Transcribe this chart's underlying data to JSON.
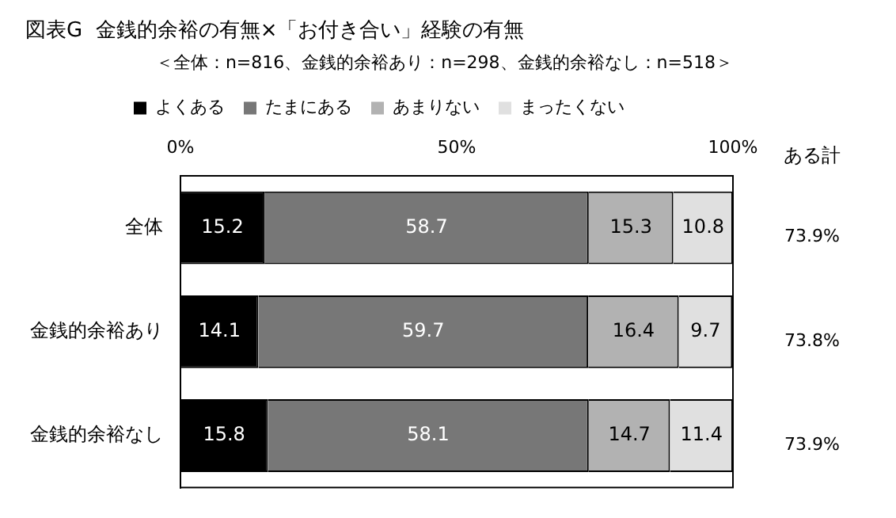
{
  "chart_data": {
    "type": "bar",
    "orientation": "horizontal",
    "stacked": true,
    "title": "図表G  金銭的余裕の有無×「お付き合い」経験の有無",
    "subtitle": "＜全体：n=816、金銭的余裕あり：n=298、金銭的余裕なし：n=518＞",
    "categories": [
      "全体",
      "金銭的余裕あり",
      "金銭的余裕なし"
    ],
    "series": [
      {
        "name": "よくある",
        "color": "#000000",
        "values": [
          15.2,
          14.1,
          15.8
        ]
      },
      {
        "name": "たまにある",
        "color": "#777777",
        "values": [
          58.7,
          59.7,
          58.1
        ]
      },
      {
        "name": "あまりない",
        "color": "#b2b2b2",
        "values": [
          15.3,
          16.4,
          14.7
        ]
      },
      {
        "name": "まったくない",
        "color": "#e0e0e0",
        "values": [
          10.8,
          9.7,
          11.4
        ]
      }
    ],
    "xlim": [
      0,
      100
    ],
    "xticks": [
      {
        "value": 0,
        "label": "0%"
      },
      {
        "value": 50,
        "label": "50%"
      },
      {
        "value": 100,
        "label": "100%"
      }
    ],
    "grid": false,
    "legend": "top",
    "data_labels": true,
    "annotations": [
      "ある計",
      "73.9%",
      "73.8%",
      "73.9%"
    ]
  }
}
